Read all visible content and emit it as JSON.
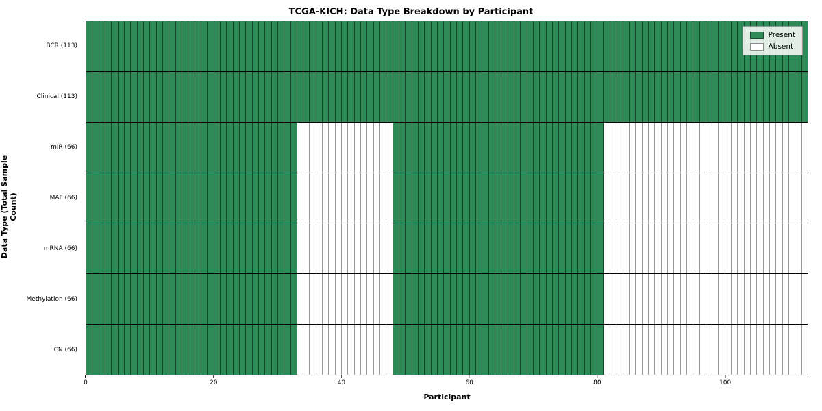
{
  "title": "TCGA-KICH: Data Type Breakdown by Participant",
  "axes": {
    "xlabel": "Participant",
    "ylabel": "Data Type (Total Sample Count)"
  },
  "colors": {
    "present": "#2e8b57",
    "absent": "#ffffff"
  },
  "chart_data": {
    "type": "heatmap",
    "title": "TCGA-KICH: Data Type Breakdown by Participant",
    "xlabel": "Participant",
    "ylabel": "Data Type (Total Sample Count)",
    "n_participants": 113,
    "x_ticks": [
      0,
      20,
      40,
      60,
      80,
      100
    ],
    "xlim": [
      0,
      113
    ],
    "grid": true,
    "legend_position": "upper right",
    "rows": [
      {
        "label": "BCR (113)",
        "data_type": "BCR",
        "count": 113,
        "present_ranges": [
          [
            0,
            113
          ]
        ]
      },
      {
        "label": "Clinical (113)",
        "data_type": "Clinical",
        "count": 113,
        "present_ranges": [
          [
            0,
            113
          ]
        ]
      },
      {
        "label": "miR (66)",
        "data_type": "miR",
        "count": 66,
        "present_ranges": [
          [
            0,
            33
          ],
          [
            48,
            81
          ]
        ]
      },
      {
        "label": "MAF (66)",
        "data_type": "MAF",
        "count": 66,
        "present_ranges": [
          [
            0,
            33
          ],
          [
            48,
            81
          ]
        ]
      },
      {
        "label": "mRNA (66)",
        "data_type": "mRNA",
        "count": 66,
        "present_ranges": [
          [
            0,
            33
          ],
          [
            48,
            81
          ]
        ]
      },
      {
        "label": "Methylation (66)",
        "data_type": "Methylation",
        "count": 66,
        "present_ranges": [
          [
            0,
            33
          ],
          [
            48,
            81
          ]
        ]
      },
      {
        "label": "CN (66)",
        "data_type": "CN",
        "count": 66,
        "present_ranges": [
          [
            0,
            33
          ],
          [
            48,
            81
          ]
        ]
      }
    ],
    "legend": [
      {
        "label": "Present",
        "color": "#2e8b57"
      },
      {
        "label": "Absent",
        "color": "#ffffff"
      }
    ]
  }
}
